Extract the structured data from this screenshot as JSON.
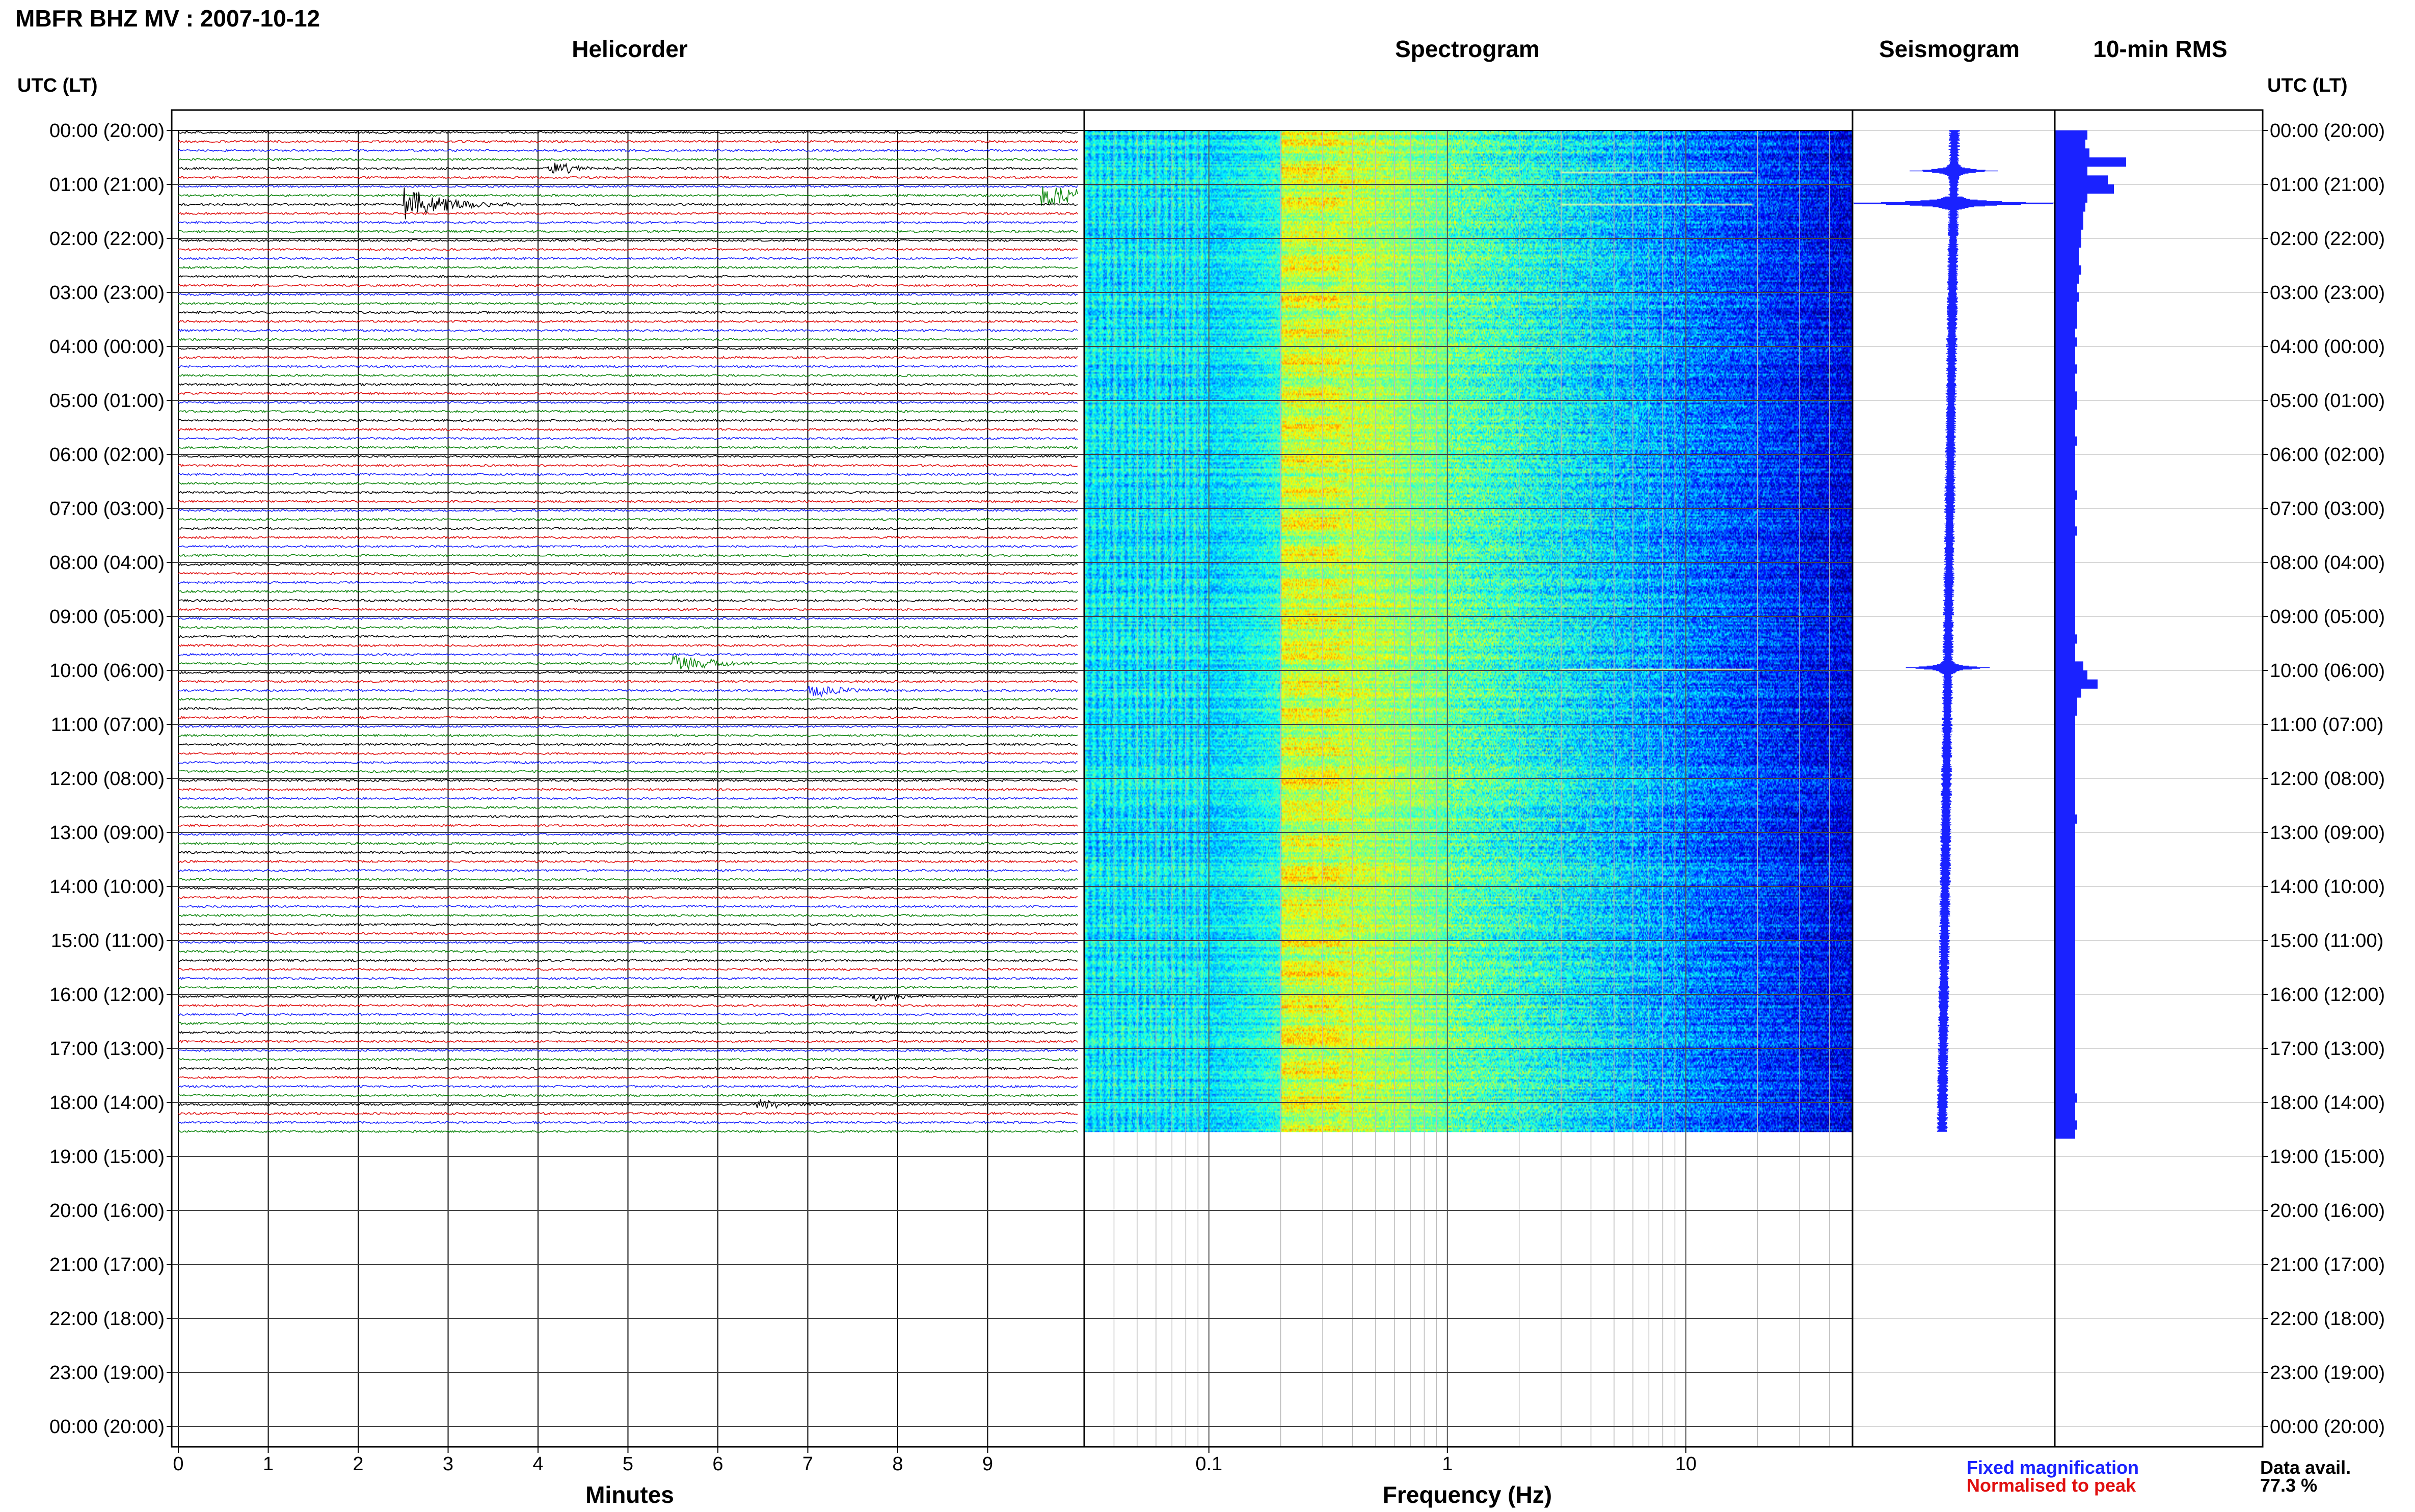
{
  "title": "MBFR BHZ MV : 2007-10-12",
  "panels": {
    "helicorder": "Helicorder",
    "spectrogram": "Spectrogram",
    "seismogram": "Seismogram",
    "rms": "10-min RMS"
  },
  "axis_labels": {
    "time_left": "UTC (LT)",
    "time_right": "UTC (LT)",
    "minutes": "Minutes",
    "frequency": "Frequency (Hz)"
  },
  "legend": {
    "fixed": "Fixed magnification",
    "normalised": "Normalised to peak",
    "fixed_color": "#1a22ff",
    "normalised_color": "#e01010"
  },
  "data_availability": {
    "label": "Data avail.",
    "value": "77.3 %"
  },
  "chart_data": {
    "type": "heatmap",
    "time_ticks": [
      "00:00 (20:00)",
      "01:00 (21:00)",
      "02:00 (22:00)",
      "03:00 (23:00)",
      "04:00 (00:00)",
      "05:00 (01:00)",
      "06:00 (02:00)",
      "07:00 (03:00)",
      "08:00 (04:00)",
      "09:00 (05:00)",
      "10:00 (06:00)",
      "11:00 (07:00)",
      "12:00 (08:00)",
      "13:00 (09:00)",
      "14:00 (10:00)",
      "15:00 (11:00)",
      "16:00 (12:00)",
      "17:00 (13:00)",
      "18:00 (14:00)",
      "19:00 (15:00)",
      "20:00 (16:00)",
      "21:00 (17:00)",
      "22:00 (18:00)",
      "23:00 (19:00)",
      "00:00 (20:00)"
    ],
    "minute_ticks": [
      "0",
      "1",
      "2",
      "3",
      "4",
      "5",
      "6",
      "7",
      "8",
      "9"
    ],
    "minutes_range": [
      0,
      10
    ],
    "frequency_ticks": [
      "0.1",
      "1",
      "10"
    ],
    "frequency_range_hz": [
      0.03,
      50
    ],
    "frequency_scale": "log",
    "trace_colors": [
      "#000000",
      "#e01010",
      "#1a22ff",
      "#118811"
    ],
    "data_end_hours": 18.55,
    "helicorder_events": [
      {
        "hour": 0.6,
        "minute": 4.2,
        "amplitude": 1.0
      },
      {
        "hour": 1.3,
        "minute": 2.6,
        "amplitude": 3.0
      },
      {
        "hour": 1.1,
        "minute": 9.7,
        "amplitude": 2.0
      },
      {
        "hour": 9.85,
        "minute": 5.6,
        "amplitude": 1.5
      },
      {
        "hour": 10.3,
        "minute": 7.1,
        "amplitude": 1.0
      },
      {
        "hour": 17.95,
        "minute": 6.5,
        "amplitude": 0.8
      },
      {
        "hour": 16.0,
        "minute": 7.8,
        "amplitude": 0.6
      }
    ],
    "rms_10min": [
      1.6,
      1.5,
      1.7,
      3.5,
      1.6,
      2.6,
      2.9,
      1.6,
      1.5,
      1.4,
      1.4,
      1.3,
      1.3,
      1.2,
      1.2,
      1.3,
      1.2,
      1.1,
      1.2,
      1.1,
      1.1,
      1.1,
      1.0,
      1.1,
      1.0,
      1.0,
      1.1,
      1.0,
      1.0,
      1.1,
      1.1,
      1.0,
      1.0,
      1.0,
      1.1,
      1.0,
      1.0,
      1.0,
      1.0,
      1.0,
      1.1,
      1.0,
      1.0,
      1.0,
      1.1,
      1.0,
      1.0,
      1.0,
      1.0,
      1.0,
      1.0,
      1.0,
      1.0,
      1.0,
      1.0,
      1.0,
      1.1,
      1.0,
      1.0,
      1.4,
      1.6,
      2.1,
      1.3,
      1.1,
      1.1,
      1.0,
      1.0,
      1.0,
      1.0,
      1.0,
      1.0,
      1.0,
      1.0,
      1.0,
      1.0,
      1.0,
      1.1,
      1.0,
      1.0,
      1.0,
      1.0,
      1.0,
      1.0,
      1.0,
      1.0,
      1.0,
      1.0,
      1.0,
      1.0,
      1.0,
      1.0,
      1.0,
      1.0,
      1.0,
      1.0,
      1.0,
      1.0,
      1.0,
      1.0,
      1.0,
      1.0,
      1.0,
      1.0,
      1.0,
      1.0,
      1.0,
      1.0,
      1.1,
      1.0,
      1.0,
      1.1,
      1.0
    ],
    "seismogram_events": [
      {
        "hour": 0.75,
        "amplitude": 1.0
      },
      {
        "hour": 1.35,
        "amplitude": 3.0
      },
      {
        "hour": 9.95,
        "amplitude": 1.0
      }
    ]
  }
}
